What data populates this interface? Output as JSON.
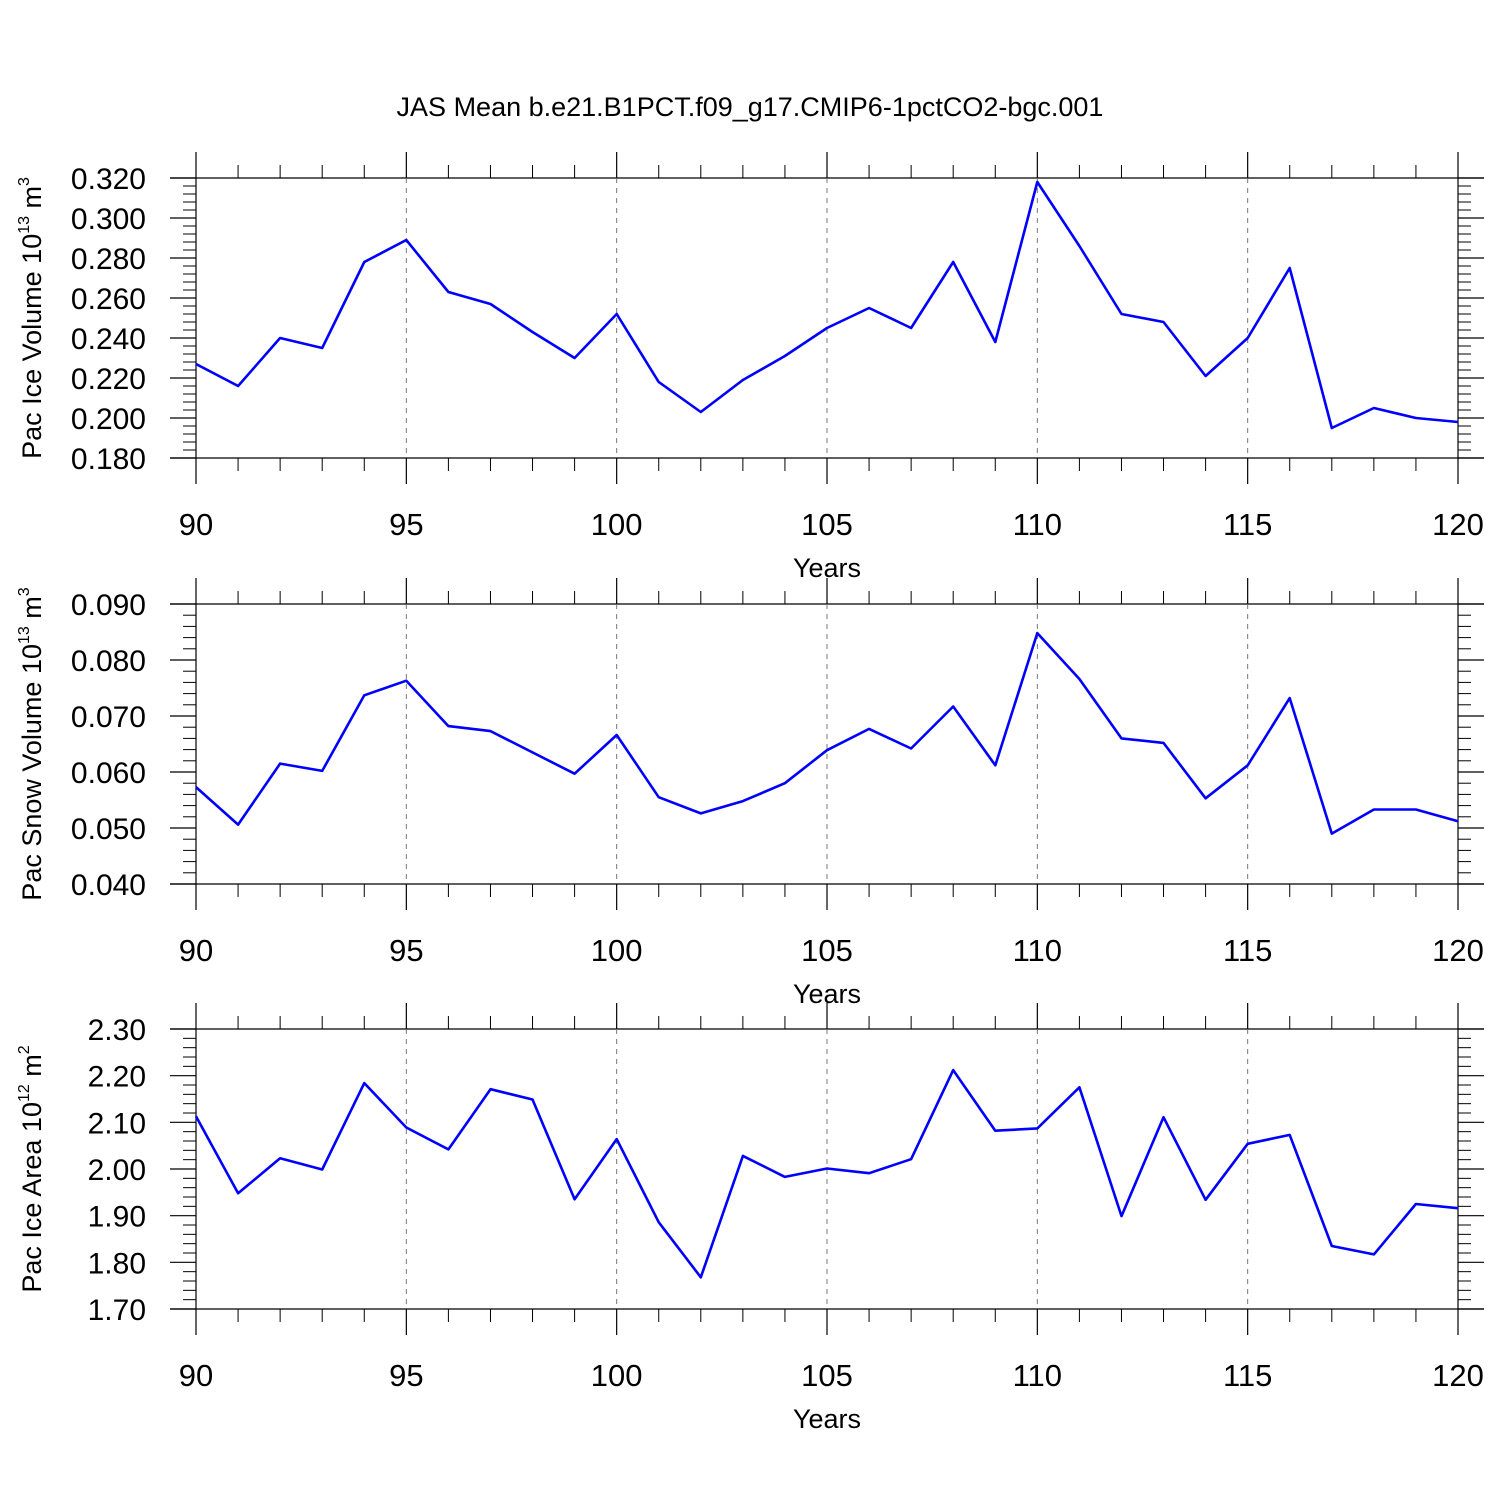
{
  "figure": {
    "title": "JAS Mean b.e21.B1PCT.f09_g17.CMIP6-1pctCO2-bgc.001"
  },
  "chart_data": [
    {
      "type": "line",
      "xlabel": "Years",
      "ylabel": {
        "main": "Pac Ice Volume 10",
        "exp": "13",
        "unit": " m",
        "unit_exp": "3"
      },
      "xlim": [
        90,
        120
      ],
      "ylim": [
        0.18,
        0.32
      ],
      "x_ticks": [
        90,
        95,
        100,
        105,
        110,
        115,
        120
      ],
      "y_ticks": [
        "0.180",
        "0.200",
        "0.220",
        "0.240",
        "0.260",
        "0.280",
        "0.300",
        "0.320"
      ],
      "line_color": "#0000ff",
      "x": [
        90,
        91,
        92,
        93,
        94,
        95,
        96,
        97,
        98,
        99,
        100,
        101,
        102,
        103,
        104,
        105,
        106,
        107,
        108,
        109,
        110,
        111,
        112,
        113,
        114,
        115,
        116,
        117,
        118,
        119,
        120
      ],
      "values": [
        0.227,
        0.216,
        0.24,
        0.235,
        0.278,
        0.289,
        0.263,
        0.257,
        0.243,
        0.23,
        0.252,
        0.218,
        0.203,
        0.219,
        0.231,
        0.245,
        0.255,
        0.245,
        0.278,
        0.238,
        0.318,
        0.286,
        0.252,
        0.248,
        0.221,
        0.24,
        0.275,
        0.195,
        0.205,
        0.2,
        0.198
      ]
    },
    {
      "type": "line",
      "xlabel": "Years",
      "ylabel": {
        "main": "Pac Snow Volume 10",
        "exp": "13",
        "unit": " m",
        "unit_exp": "3"
      },
      "xlim": [
        90,
        120
      ],
      "ylim": [
        0.04,
        0.09
      ],
      "x_ticks": [
        90,
        95,
        100,
        105,
        110,
        115,
        120
      ],
      "y_ticks": [
        "0.040",
        "0.050",
        "0.060",
        "0.070",
        "0.080",
        "0.090"
      ],
      "line_color": "#0000ff",
      "x": [
        90,
        91,
        92,
        93,
        94,
        95,
        96,
        97,
        98,
        99,
        100,
        101,
        102,
        103,
        104,
        105,
        106,
        107,
        108,
        109,
        110,
        111,
        112,
        113,
        114,
        115,
        116,
        117,
        118,
        119,
        120
      ],
      "values": [
        0.0573,
        0.0506,
        0.0615,
        0.0602,
        0.0737,
        0.0763,
        0.0682,
        0.0673,
        0.0635,
        0.0597,
        0.0666,
        0.0555,
        0.0526,
        0.0548,
        0.058,
        0.0639,
        0.0677,
        0.0642,
        0.0717,
        0.0612,
        0.0848,
        0.0766,
        0.066,
        0.0652,
        0.0553,
        0.0612,
        0.0732,
        0.049,
        0.0533,
        0.0533,
        0.0512
      ]
    },
    {
      "type": "line",
      "xlabel": "Years",
      "ylabel": {
        "main": "Pac Ice Area 10",
        "exp": "12",
        "unit": " m",
        "unit_exp": "2"
      },
      "xlim": [
        90,
        120
      ],
      "ylim": [
        1.7,
        2.3
      ],
      "x_ticks": [
        90,
        95,
        100,
        105,
        110,
        115,
        120
      ],
      "y_ticks": [
        "1.70",
        "1.80",
        "1.90",
        "2.00",
        "2.10",
        "2.20",
        "2.30"
      ],
      "line_color": "#0000ff",
      "x": [
        90,
        91,
        92,
        93,
        94,
        95,
        96,
        97,
        98,
        99,
        100,
        101,
        102,
        103,
        104,
        105,
        106,
        107,
        108,
        109,
        110,
        111,
        112,
        113,
        114,
        115,
        116,
        117,
        118,
        119,
        120
      ],
      "values": [
        2.113,
        1.948,
        2.023,
        1.999,
        2.184,
        2.089,
        2.042,
        2.171,
        2.149,
        1.935,
        2.064,
        1.886,
        1.768,
        2.028,
        1.983,
        2.001,
        1.991,
        2.021,
        2.212,
        2.082,
        2.087,
        2.175,
        1.899,
        2.111,
        1.934,
        2.054,
        2.073,
        1.835,
        1.817,
        1.925,
        1.916
      ]
    }
  ]
}
